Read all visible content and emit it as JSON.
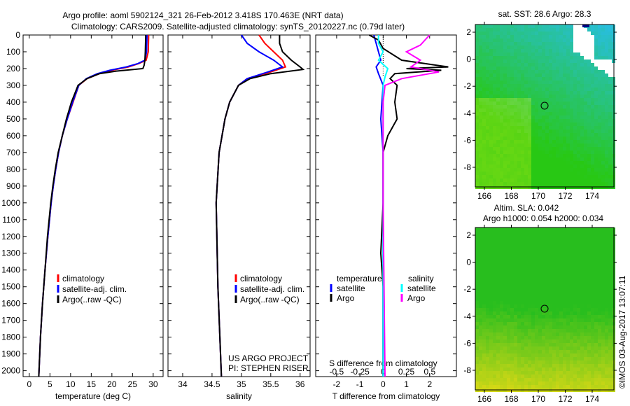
{
  "titles": {
    "line1": "Argo profile: aoml 5902124_321 26-Feb-2012 3.418S 170.463E (NRT data)",
    "line2": "Climatology: CARS2009. Satellite-adjusted climatology: synTS_20120227.nc (0.79d later)"
  },
  "colors": {
    "climatology": "#ff0000",
    "satellite": "#0000ff",
    "argo": "#000000",
    "sal_satellite": "#00ffff",
    "sal_argo": "#ff00ff"
  },
  "chart_data": [
    {
      "type": "line",
      "id": "temperature",
      "xlabel": "temperature (deg C)",
      "xlim": [
        -1.5,
        32.4
      ],
      "ylim": [
        0,
        2035
      ],
      "xticks": [
        0,
        5,
        10,
        15,
        20,
        25,
        30
      ],
      "yticks": [
        0,
        100,
        200,
        300,
        400,
        500,
        600,
        700,
        800,
        900,
        1000,
        1100,
        1200,
        1300,
        1400,
        1500,
        1600,
        1700,
        1800,
        1900,
        2000
      ],
      "legend": [
        "climatology",
        "satellite-adj. clim.",
        "Argo(..raw -QC)"
      ],
      "series": [
        {
          "name": "climatology",
          "depth": [
            0,
            100,
            150,
            170,
            190,
            210,
            230,
            260,
            300,
            400,
            500,
            600,
            700,
            800,
            900,
            1000,
            1200,
            1400,
            1600,
            1800,
            2035
          ],
          "values": [
            28.9,
            28.8,
            28.3,
            26.5,
            24,
            20,
            17,
            14,
            12,
            10.6,
            9.2,
            8,
            7.1,
            6.4,
            5.8,
            5.3,
            4.5,
            3.8,
            3.2,
            2.7,
            2.3
          ]
        },
        {
          "name": "satellite-adj. clim.",
          "depth": [
            0,
            100,
            150,
            170,
            190,
            210,
            230,
            260,
            300,
            400,
            500,
            600,
            700,
            800,
            900,
            1000,
            1200,
            1400,
            1600,
            1800,
            2035
          ],
          "values": [
            28.5,
            28.4,
            28,
            26.3,
            23.5,
            19.5,
            16.5,
            13.8,
            12,
            10.5,
            9.2,
            8,
            7.1,
            6.4,
            5.8,
            5.3,
            4.5,
            3.8,
            3.2,
            2.7,
            2.3
          ]
        },
        {
          "name": "Argo(..raw -QC)",
          "depth": [
            0,
            100,
            150,
            180,
            200,
            215,
            230,
            260,
            300,
            400,
            450,
            500,
            600,
            700,
            800,
            900,
            1000,
            1200,
            1400,
            1600,
            1800,
            2035
          ],
          "values": [
            28.2,
            28.1,
            28.0,
            27.8,
            27.5,
            21,
            17,
            14,
            11.8,
            10.2,
            9.6,
            9.0,
            8,
            7,
            6.3,
            5.7,
            5.2,
            4.4,
            3.8,
            3.2,
            2.7,
            2.3
          ]
        }
      ]
    },
    {
      "type": "line",
      "id": "salinity",
      "xlabel": "salinity",
      "xlim": [
        33.75,
        36.17
      ],
      "ylim": [
        0,
        2035
      ],
      "xticks": [
        34,
        34.5,
        35,
        35.5,
        36
      ],
      "legend": [
        "climatology",
        "satellite-adj. clim.",
        "Argo(..raw -QC)"
      ],
      "annotation": [
        "US ARGO PROJECT",
        "PI: STEPHEN RISER"
      ],
      "series": [
        {
          "name": "climatology",
          "depth": [
            0,
            50,
            100,
            150,
            190,
            220,
            260,
            300,
            400,
            500,
            700,
            1000,
            1500,
            2035
          ],
          "values": [
            35.3,
            35.4,
            35.55,
            35.7,
            35.75,
            35.5,
            35.1,
            34.95,
            34.8,
            34.72,
            34.62,
            34.57,
            34.6,
            34.66
          ]
        },
        {
          "name": "satellite-adj. clim.",
          "depth": [
            0,
            50,
            100,
            150,
            190,
            220,
            260,
            300,
            400,
            500,
            700,
            1000,
            1500,
            2035
          ],
          "values": [
            35.0,
            35.1,
            35.3,
            35.55,
            35.7,
            35.45,
            35.1,
            34.95,
            34.8,
            34.72,
            34.62,
            34.57,
            34.6,
            34.66
          ]
        },
        {
          "name": "Argo(..raw -QC)",
          "depth": [
            0,
            50,
            100,
            150,
            190,
            205,
            230,
            260,
            300,
            400,
            500,
            700,
            1000,
            1500,
            2035
          ],
          "values": [
            35.65,
            35.65,
            35.7,
            35.85,
            36.0,
            36.05,
            35.5,
            35.15,
            34.95,
            34.8,
            34.72,
            34.62,
            34.57,
            34.6,
            34.66
          ]
        }
      ]
    },
    {
      "type": "line",
      "id": "differences",
      "xlabel": "T difference from climatology",
      "x2label": "S difference from climatology",
      "xlim": [
        -2.9,
        3.15
      ],
      "ylim": [
        0,
        2035
      ],
      "xticks": [
        -2,
        -1,
        0,
        1,
        2
      ],
      "x2ticks": [
        "-0.5",
        "-0.25",
        "0",
        "0.25",
        "0.5"
      ],
      "legend_temperature": {
        "title": "temperature",
        "items": [
          "satellite",
          "Argo"
        ]
      },
      "legend_salinity": {
        "title": "salinity",
        "items": [
          "satellite",
          "Argo"
        ]
      },
      "series": [
        {
          "name": "T satellite",
          "depth": [
            0,
            100,
            150,
            190,
            230,
            300,
            500,
            700,
            1000,
            1500,
            2035
          ],
          "values": [
            -0.4,
            -0.2,
            -0.1,
            -0.3,
            -0.2,
            0,
            -0.1,
            0,
            0,
            0,
            0
          ]
        },
        {
          "name": "T Argo",
          "depth": [
            0,
            30,
            80,
            150,
            190,
            200,
            210,
            230,
            260,
            300,
            400,
            500,
            600,
            700,
            1000,
            1300,
            1500,
            2035
          ],
          "values": [
            -0.6,
            -0.2,
            0,
            0.8,
            2.8,
            1.0,
            2.5,
            0.5,
            0.3,
            0.6,
            0.5,
            0.6,
            0.2,
            0,
            0,
            -0.1,
            0,
            0
          ]
        },
        {
          "name": "S satellite",
          "depth": [
            0,
            50,
            100,
            150,
            200,
            250,
            300,
            500,
            1000,
            2035
          ],
          "values": [
            -0.05,
            -0.05,
            0,
            -0.05,
            0.05,
            0.02,
            0,
            0,
            0,
            0
          ]
        },
        {
          "name": "S Argo",
          "depth": [
            0,
            60,
            100,
            150,
            190,
            220,
            260,
            300,
            400,
            1000,
            2035
          ],
          "values": [
            0.5,
            0.4,
            0.25,
            0.4,
            0.3,
            0.6,
            0.2,
            0.02,
            0,
            0,
            0.02
          ]
        }
      ]
    }
  ],
  "maps": [
    {
      "title": "sat. SST: 28.6 Argo: 28.3",
      "xticks": [
        "166",
        "168",
        "170",
        "172",
        "174"
      ],
      "yticks": [
        "2",
        "0",
        "-2",
        "-4",
        "-6",
        "-8"
      ]
    },
    {
      "title1": "Altim. SLA: 0.042",
      "title2": "Argo h1000: 0.054 h2000: 0.034",
      "xticks": [
        "166",
        "168",
        "170",
        "172",
        "174"
      ],
      "yticks": [
        "2",
        "0",
        "-2",
        "-4",
        "-6",
        "-8"
      ]
    }
  ],
  "footer": "©IMOS 03-Aug-2017 13:07:11"
}
